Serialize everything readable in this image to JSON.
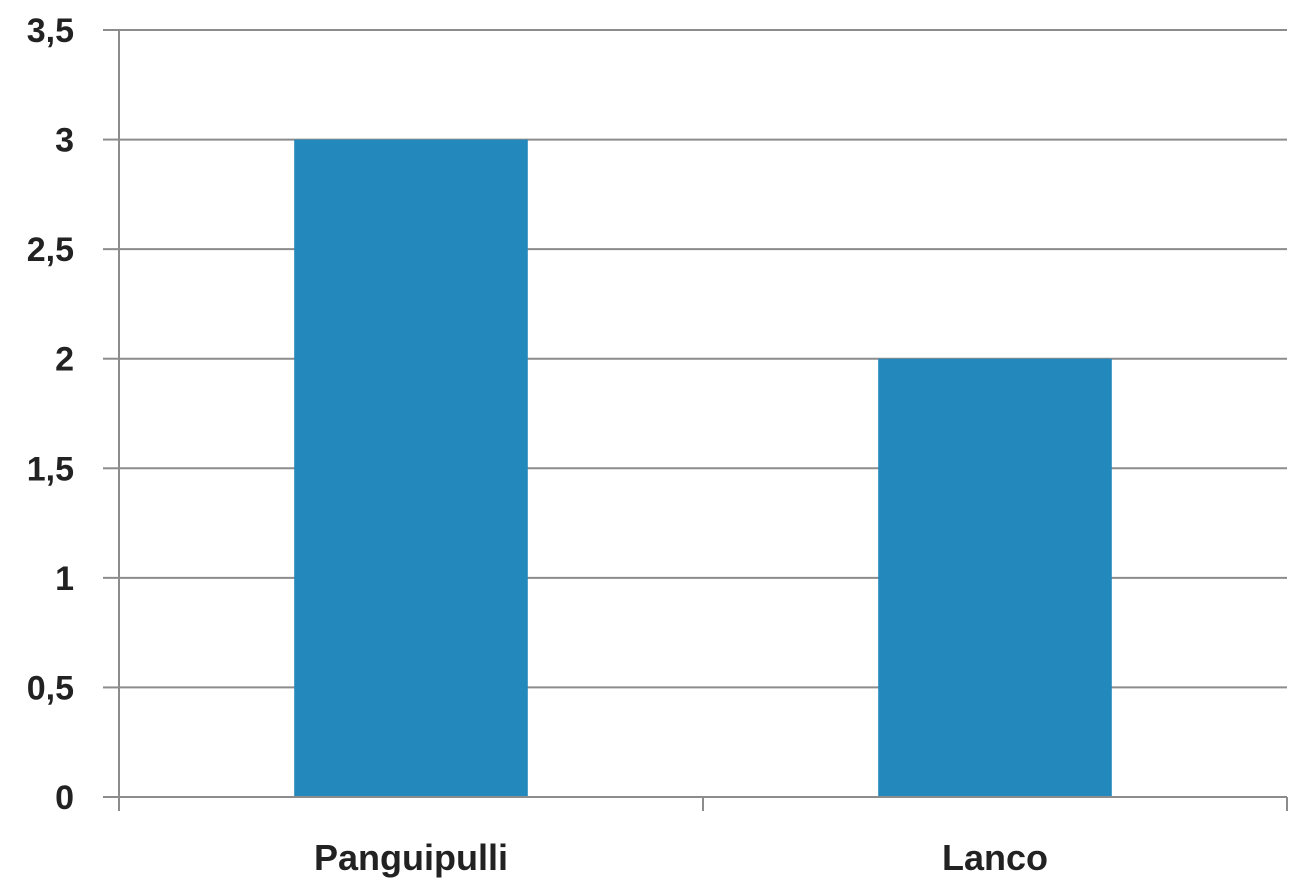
{
  "chart_data": {
    "type": "bar",
    "title": "",
    "xlabel": "",
    "ylabel": "",
    "categories": [
      "Panguipulli",
      "Lanco"
    ],
    "values": [
      3,
      2
    ],
    "ylim": [
      0,
      3.5
    ],
    "yticks": [
      0,
      0.5,
      1,
      1.5,
      2,
      2.5,
      3,
      3.5
    ],
    "ytick_labels": [
      "0",
      "0,5",
      "1",
      "1,5",
      "2",
      "2,5",
      "3",
      "3,5"
    ],
    "grid": true,
    "legend": "none",
    "colors": {
      "bar": "#2388BC",
      "grid": "#8C8C8C",
      "axis": "#8C8C8C",
      "text": "#222222"
    }
  }
}
